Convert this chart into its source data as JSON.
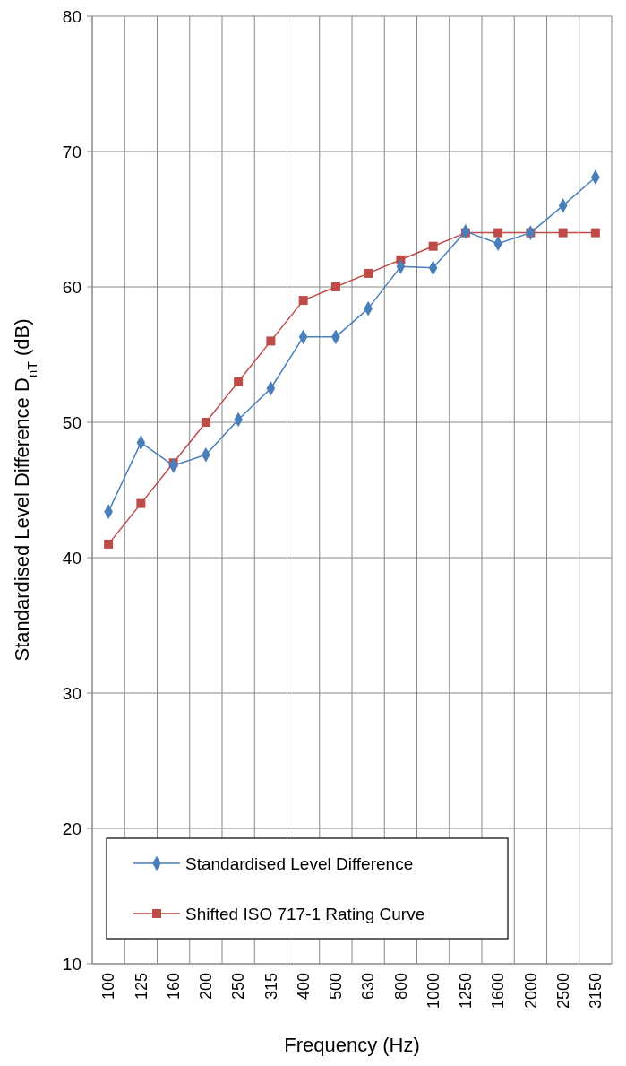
{
  "chart_data": {
    "type": "line",
    "xlabel": "Frequency (Hz)",
    "ylabel": "Standardised Level Difference D$_{nT}$ (dB)",
    "categories": [
      "100",
      "125",
      "160",
      "200",
      "250",
      "315",
      "400",
      "500",
      "630",
      "800",
      "1000",
      "1250",
      "1600",
      "2000",
      "2500",
      "3150"
    ],
    "series": [
      {
        "name": "Standardised Level Difference",
        "color": "#4a7ebb",
        "marker": "diamond",
        "values": [
          43.4,
          48.5,
          46.8,
          47.6,
          50.2,
          52.5,
          56.3,
          56.3,
          58.4,
          61.5,
          61.4,
          64.1,
          63.2,
          64.0,
          66.0,
          68.1
        ]
      },
      {
        "name": "Shifted ISO 717-1 Rating Curve",
        "color": "#be4b48",
        "marker": "square",
        "values": [
          41,
          44,
          47,
          50,
          53,
          56,
          59,
          60,
          61,
          62,
          63,
          64,
          64,
          64,
          64,
          64
        ]
      }
    ],
    "ylim": [
      10,
      80
    ],
    "yticks": [
      10,
      20,
      30,
      40,
      50,
      60,
      70,
      80
    ],
    "grid": true,
    "legend": "bottom",
    "line_style": "solid"
  }
}
